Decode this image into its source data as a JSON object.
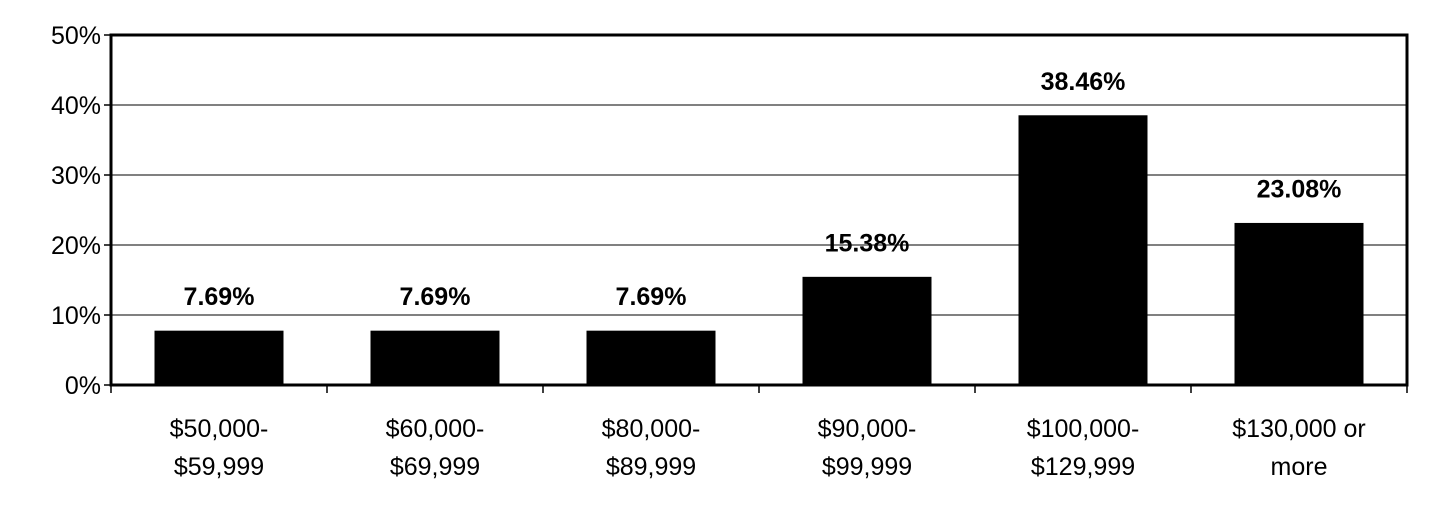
{
  "chart_data": {
    "type": "bar",
    "title": "",
    "xlabel": "",
    "ylabel": "",
    "ylim": [
      0,
      50
    ],
    "y_ticks": [
      "0%",
      "10%",
      "20%",
      "30%",
      "40%",
      "50%"
    ],
    "y_tick_values": [
      0,
      10,
      20,
      30,
      40,
      50
    ],
    "grid": true,
    "bar_color": "#000000",
    "categories": [
      [
        "$50,000-",
        "$59,999"
      ],
      [
        "$60,000-",
        "$69,999"
      ],
      [
        "$80,000-",
        "$89,999"
      ],
      [
        "$90,000-",
        "$99,999"
      ],
      [
        "$100,000-",
        "$129,999"
      ],
      [
        "$130,000 or",
        "more"
      ]
    ],
    "values": [
      7.69,
      7.69,
      7.69,
      15.38,
      38.46,
      23.08
    ],
    "data_labels": [
      "7.69%",
      "7.69%",
      "7.69%",
      "15.38%",
      "38.46%",
      "23.08%"
    ]
  }
}
